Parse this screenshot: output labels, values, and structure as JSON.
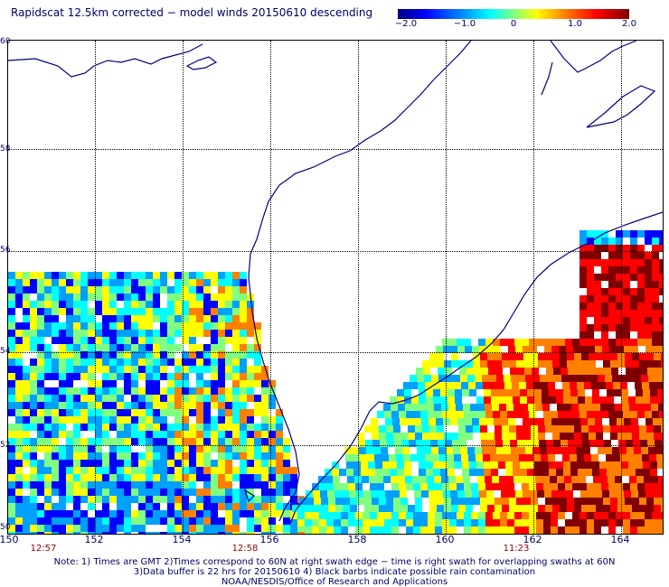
{
  "title": "Rapidscat 12.5km corrected − model winds 20150610 descending",
  "colorbar": {
    "labels": [
      "−2.0",
      "−1.0",
      "0",
      "1.0",
      "2.0"
    ],
    "colors": [
      "#000080",
      "#0000ff",
      "#00a0ff",
      "#00ffff",
      "#80ff80",
      "#ffff00",
      "#ff8000",
      "#ff0000",
      "#800000"
    ]
  },
  "axes": {
    "lat_labels": [
      "60",
      "58",
      "56",
      "54",
      "52",
      "50"
    ],
    "lon_labels": [
      "150",
      "152",
      "154",
      "156",
      "158",
      "160",
      "162",
      "164"
    ]
  },
  "times": [
    "12:57",
    "12:58",
    "11:23"
  ],
  "notes": [
    "Note: 1) Times are GMT 2)Times correspond to 60N at right swath edge − time is right swath for overlapping swaths at 60N",
    "3)Data buffer is 22 hrs for 20150610 4) Black barbs indicate possible rain contamination",
    "NOAA/NESDIS/Office of Research and Applications"
  ],
  "map": {
    "coast_color": "#000080",
    "grid_color": "#000000",
    "data_description_hint": "wind difference field (corrected minus model), values from -2.0 to 2.0 m/s"
  }
}
